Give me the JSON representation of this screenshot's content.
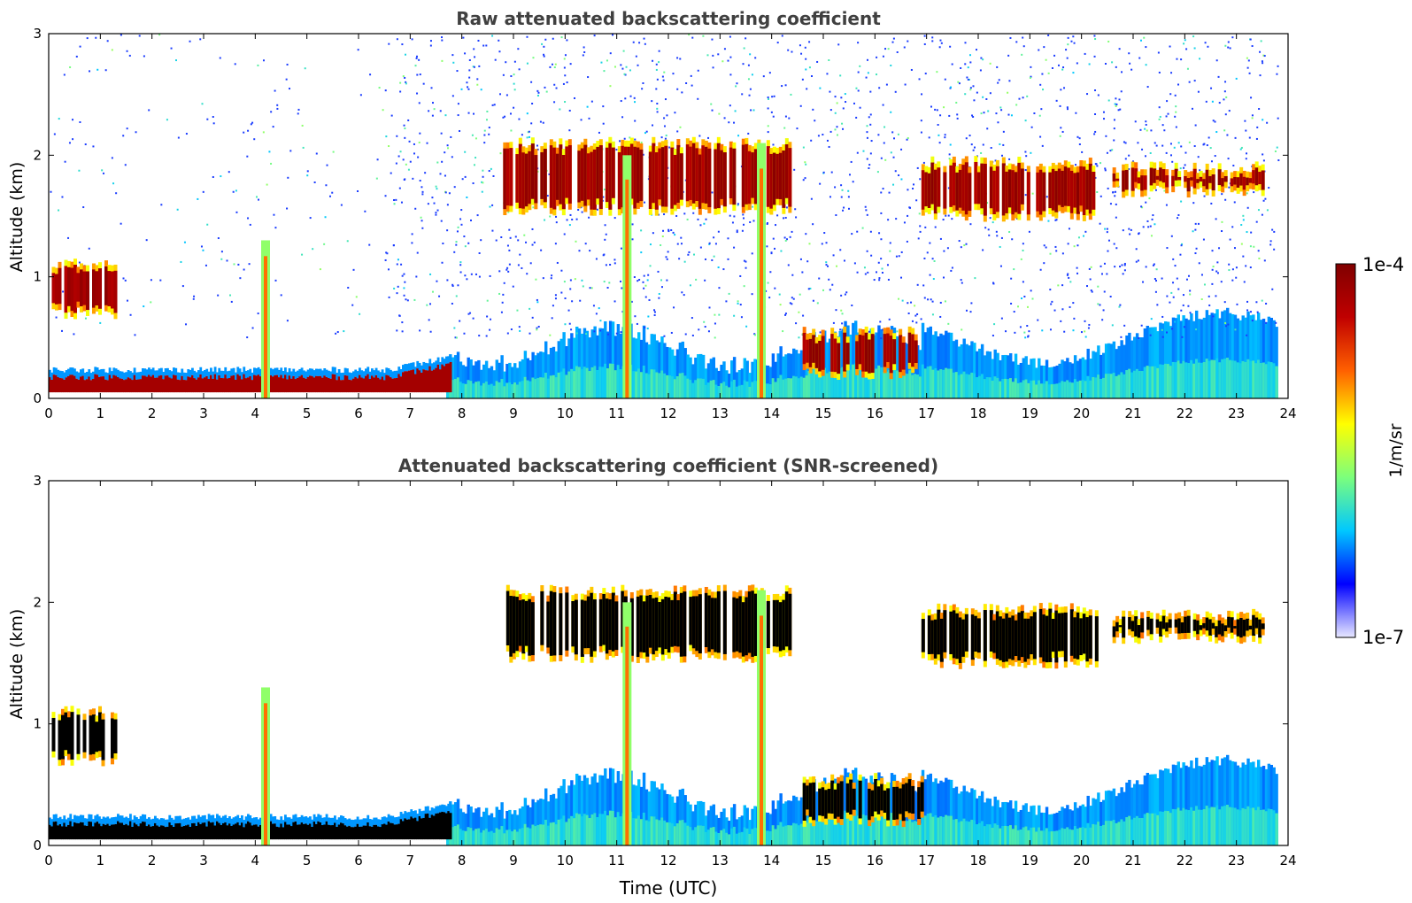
{
  "chart_data": [
    {
      "type": "heatmap",
      "title": "Raw attenuated backscattering coefficient",
      "xlabel": "",
      "ylabel": "Altitude (km)",
      "xlim": [
        0,
        24
      ],
      "ylim": [
        0,
        3
      ],
      "xticks": [
        "0",
        "1",
        "2",
        "3",
        "4",
        "5",
        "6",
        "7",
        "8",
        "9",
        "10",
        "11",
        "12",
        "13",
        "14",
        "15",
        "16",
        "17",
        "18",
        "19",
        "20",
        "21",
        "22",
        "23",
        "24"
      ],
      "yticks": [
        "0",
        "1",
        "2",
        "3"
      ],
      "screened": false,
      "layers": [
        {
          "name": "boundary-layer-aerosol",
          "kind": "surface",
          "t0": 0.0,
          "t1": 7.8,
          "top_km": 0.15
        },
        {
          "name": "nocturnal-cloud-base",
          "kind": "band",
          "t0": 14.6,
          "t1": 16.9,
          "base_km": 0.25,
          "top_km": 0.5
        },
        {
          "name": "low-cloud-early",
          "kind": "band",
          "t0": 0.0,
          "t1": 1.3,
          "base_km": 0.75,
          "top_km": 1.05
        },
        {
          "name": "cumulus-layer",
          "kind": "band",
          "t0": 8.8,
          "t1": 14.4,
          "base_km": 1.6,
          "top_km": 2.05
        },
        {
          "name": "afternoon-cloud-deck",
          "kind": "band",
          "t0": 16.9,
          "t1": 20.3,
          "base_km": 1.55,
          "top_km": 1.9
        },
        {
          "name": "evening-thin-cloud",
          "kind": "band",
          "t0": 20.6,
          "t1": 23.5,
          "base_km": 1.75,
          "top_km": 1.85
        },
        {
          "name": "aerosol-plume-4.2",
          "kind": "spike",
          "t": 4.2,
          "top_km": 1.3
        },
        {
          "name": "precip-streak-11.2",
          "kind": "spike",
          "t": 11.2,
          "top_km": 2.0
        },
        {
          "name": "precip-streak-13.8",
          "kind": "spike",
          "t": 13.8,
          "top_km": 2.1
        }
      ]
    },
    {
      "type": "heatmap",
      "title": "Attenuated backscattering coefficient (SNR-screened)",
      "xlabel": "Time (UTC)",
      "ylabel": "Altitude (km)",
      "xlim": [
        0,
        24
      ],
      "ylim": [
        0,
        3
      ],
      "xticks": [
        "0",
        "1",
        "2",
        "3",
        "4",
        "5",
        "6",
        "7",
        "8",
        "9",
        "10",
        "11",
        "12",
        "13",
        "14",
        "15",
        "16",
        "17",
        "18",
        "19",
        "20",
        "21",
        "22",
        "23",
        "24"
      ],
      "yticks": [
        "0",
        "1",
        "2",
        "3"
      ],
      "screened": true,
      "layers": [
        {
          "name": "boundary-layer-aerosol",
          "kind": "surface",
          "t0": 0.0,
          "t1": 7.8,
          "top_km": 0.15
        },
        {
          "name": "nocturnal-cloud-base",
          "kind": "band",
          "t0": 14.6,
          "t1": 16.9,
          "base_km": 0.25,
          "top_km": 0.5
        },
        {
          "name": "low-cloud-early",
          "kind": "band",
          "t0": 0.0,
          "t1": 1.3,
          "base_km": 0.75,
          "top_km": 1.05
        },
        {
          "name": "cumulus-layer",
          "kind": "band",
          "t0": 8.8,
          "t1": 14.4,
          "base_km": 1.6,
          "top_km": 2.05
        },
        {
          "name": "afternoon-cloud-deck",
          "kind": "band",
          "t0": 16.9,
          "t1": 20.3,
          "base_km": 1.55,
          "top_km": 1.9
        },
        {
          "name": "evening-thin-cloud",
          "kind": "band",
          "t0": 20.6,
          "t1": 23.5,
          "base_km": 1.75,
          "top_km": 1.85
        },
        {
          "name": "aerosol-plume-4.2",
          "kind": "spike",
          "t": 4.2,
          "top_km": 1.3
        },
        {
          "name": "precip-streak-11.2",
          "kind": "spike",
          "t": 11.2,
          "top_km": 2.0
        },
        {
          "name": "precip-streak-13.8",
          "kind": "spike",
          "t": 13.8,
          "top_km": 2.1
        }
      ]
    }
  ],
  "colorbar": {
    "label": "1/m/sr",
    "max_label": "1e-4",
    "min_label": "1e-7",
    "min": 1e-07,
    "max": 0.0001,
    "scale": "log",
    "colors": [
      "#e8e8ff",
      "#0000ff",
      "#00c8ff",
      "#7cff7c",
      "#ffff00",
      "#ff6000",
      "#c00000",
      "#800000"
    ]
  }
}
